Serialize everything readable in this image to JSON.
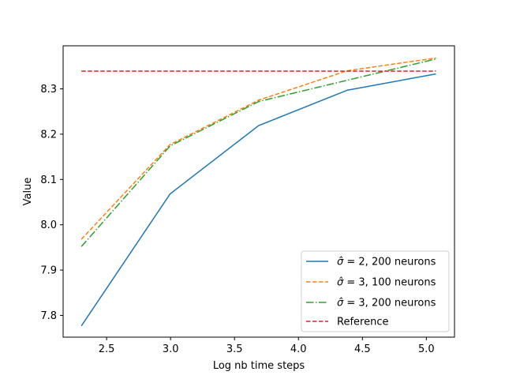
{
  "chart_data": {
    "type": "line",
    "title": "",
    "xlabel": "Log nb time  steps",
    "ylabel": "Value",
    "xlim": [
      2.16,
      5.22
    ],
    "ylim": [
      7.752,
      8.395
    ],
    "xticks": [
      2.5,
      3.0,
      3.5,
      4.0,
      4.5,
      5.0
    ],
    "xtick_labels": [
      "2.5",
      "3.0",
      "3.5",
      "4.0",
      "4.5",
      "5.0"
    ],
    "yticks": [
      7.8,
      7.9,
      8.0,
      8.1,
      8.2,
      8.3
    ],
    "ytick_labels": [
      "7.8",
      "7.9",
      "8.0",
      "8.1",
      "8.2",
      "8.3"
    ],
    "grid": false,
    "legend_position": "bottom-right",
    "series": [
      {
        "name_prefix": "σ̂ = ",
        "name": " 2, 200 neurons",
        "color": "#1f77b4",
        "linestyle": "solid",
        "x": [
          2.303,
          2.996,
          3.689,
          4.382,
          5.075
        ],
        "y": [
          7.777,
          8.068,
          8.219,
          8.297,
          8.333
        ]
      },
      {
        "name_prefix": "σ̂ = ",
        "name": " 3, 100 neurons",
        "color": "#ff7f0e",
        "linestyle": "dashed",
        "x": [
          2.303,
          2.996,
          3.689,
          4.382,
          5.075
        ],
        "y": [
          7.968,
          8.177,
          8.275,
          8.34,
          8.368
        ]
      },
      {
        "name_prefix": "σ̂ = ",
        "name": " 3, 200 neurons",
        "color": "#2ca02c",
        "linestyle": "dashdot",
        "x": [
          2.303,
          2.996,
          3.689,
          4.382,
          5.075
        ],
        "y": [
          7.952,
          8.174,
          8.272,
          8.319,
          8.366
        ]
      },
      {
        "name": "Reference",
        "color": "#d62728",
        "linestyle": "dashed",
        "x": [
          2.303,
          5.075
        ],
        "y": [
          8.339,
          8.339
        ]
      }
    ]
  }
}
